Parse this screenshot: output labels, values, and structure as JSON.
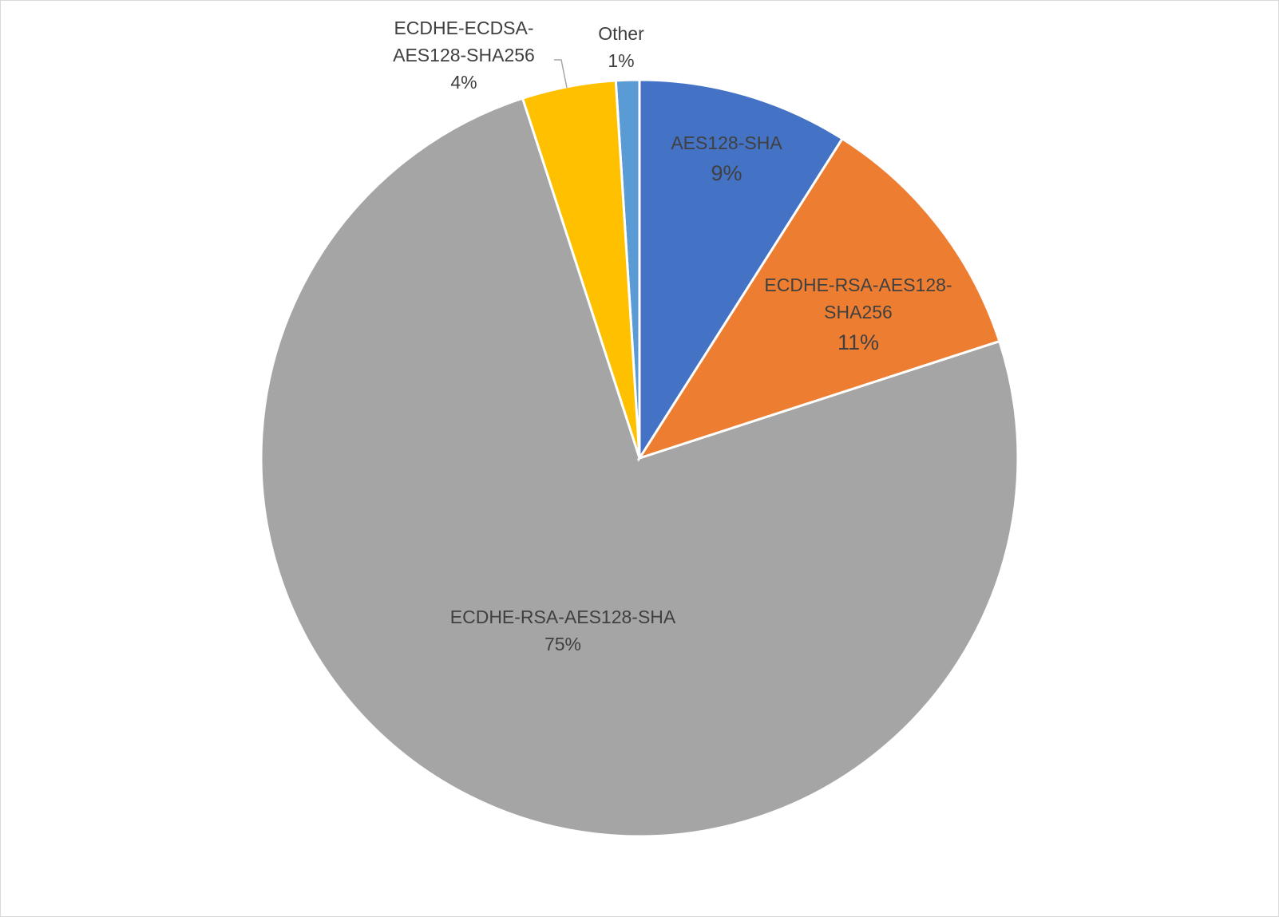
{
  "chart_data": {
    "type": "pie",
    "categories": [
      "AES128-SHA",
      "ECDHE-RSA-AES128-SHA256",
      "ECDHE-RSA-AES128-SHA",
      "ECDHE-ECDSA-AES128-SHA256",
      "Other"
    ],
    "values": [
      9,
      11,
      75,
      4,
      1
    ],
    "value_labels": [
      "9%",
      "11%",
      "75%",
      "4%",
      "1%"
    ],
    "colors": [
      "#4472c4",
      "#ed7d31",
      "#a5a5a5",
      "#ffc000",
      "#5b9bd5"
    ]
  }
}
